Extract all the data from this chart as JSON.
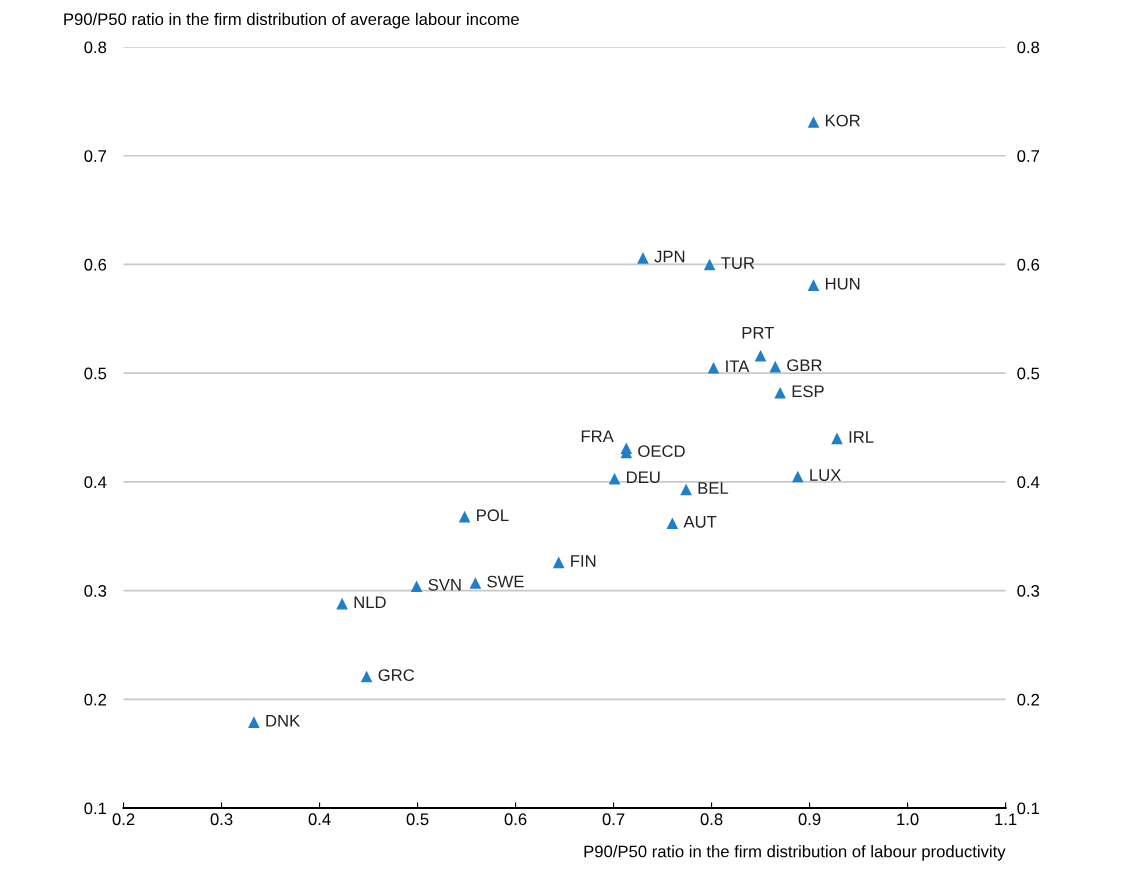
{
  "chart_data": {
    "type": "scatter",
    "ylabel": "P90/P50 ratio in the firm distribution of average labour income",
    "xlabel": "P90/P50 ratio in the firm distribution of labour productivity",
    "x": [
      0.904,
      0.73,
      0.798,
      0.904,
      0.85,
      0.802,
      0.865,
      0.87,
      0.928,
      0.713,
      0.713,
      0.701,
      0.774,
      0.888,
      0.548,
      0.76,
      0.644,
      0.499,
      0.559,
      0.423,
      0.448,
      0.333
    ],
    "values": [
      0.731,
      0.606,
      0.6,
      0.581,
      0.516,
      0.505,
      0.506,
      0.482,
      0.44,
      0.431,
      0.427,
      0.403,
      0.393,
      0.405,
      0.368,
      0.362,
      0.326,
      0.304,
      0.307,
      0.288,
      0.221,
      0.179
    ],
    "color": "#1f7fc8",
    "marker": "triangle",
    "annotations": [
      {
        "text": "KOR",
        "x": 0.904,
        "y": 0.731
      },
      {
        "text": "JPN",
        "x": 0.73,
        "y": 0.606
      },
      {
        "text": "TUR",
        "x": 0.798,
        "y": 0.6
      },
      {
        "text": "HUN",
        "x": 0.904,
        "y": 0.581
      },
      {
        "text": "PRT",
        "x": 0.85,
        "y": 0.516
      },
      {
        "text": "ITA",
        "x": 0.802,
        "y": 0.505
      },
      {
        "text": "GBR",
        "x": 0.865,
        "y": 0.506
      },
      {
        "text": "ESP",
        "x": 0.87,
        "y": 0.482
      },
      {
        "text": "IRL",
        "x": 0.928,
        "y": 0.44
      },
      {
        "text": "FRA",
        "x": 0.713,
        "y": 0.431
      },
      {
        "text": "OECD",
        "x": 0.713,
        "y": 0.427
      },
      {
        "text": "DEU",
        "x": 0.701,
        "y": 0.403
      },
      {
        "text": "BEL",
        "x": 0.774,
        "y": 0.393
      },
      {
        "text": "LUX",
        "x": 0.888,
        "y": 0.405
      },
      {
        "text": "POL",
        "x": 0.548,
        "y": 0.368
      },
      {
        "text": "AUT",
        "x": 0.76,
        "y": 0.362
      },
      {
        "text": "FIN",
        "x": 0.644,
        "y": 0.326
      },
      {
        "text": "SVN",
        "x": 0.499,
        "y": 0.304
      },
      {
        "text": "SWE",
        "x": 0.559,
        "y": 0.307
      },
      {
        "text": "NLD",
        "x": 0.423,
        "y": 0.288
      },
      {
        "text": "GRC",
        "x": 0.448,
        "y": 0.221
      },
      {
        "text": "DNK",
        "x": 0.333,
        "y": 0.179
      }
    ],
    "xlim": [
      0.2,
      1.1
    ],
    "xticks": [
      0.2,
      0.3,
      0.4,
      0.5,
      0.6,
      0.7,
      0.8,
      0.9,
      {
        "value": 1.0,
        "label": "1.0"
      },
      1.1
    ],
    "ylim": [
      0.1,
      0.8
    ],
    "yticks": [
      0.1,
      0.2,
      0.3,
      0.4,
      0.5,
      0.6,
      0.7,
      0.8
    ],
    "y2lim": [
      0.1,
      0.8
    ],
    "y2ticks": [
      0.1,
      0.2,
      0.3,
      0.4,
      0.5,
      0.6,
      0.7,
      0.8
    ],
    "grid": "y"
  }
}
